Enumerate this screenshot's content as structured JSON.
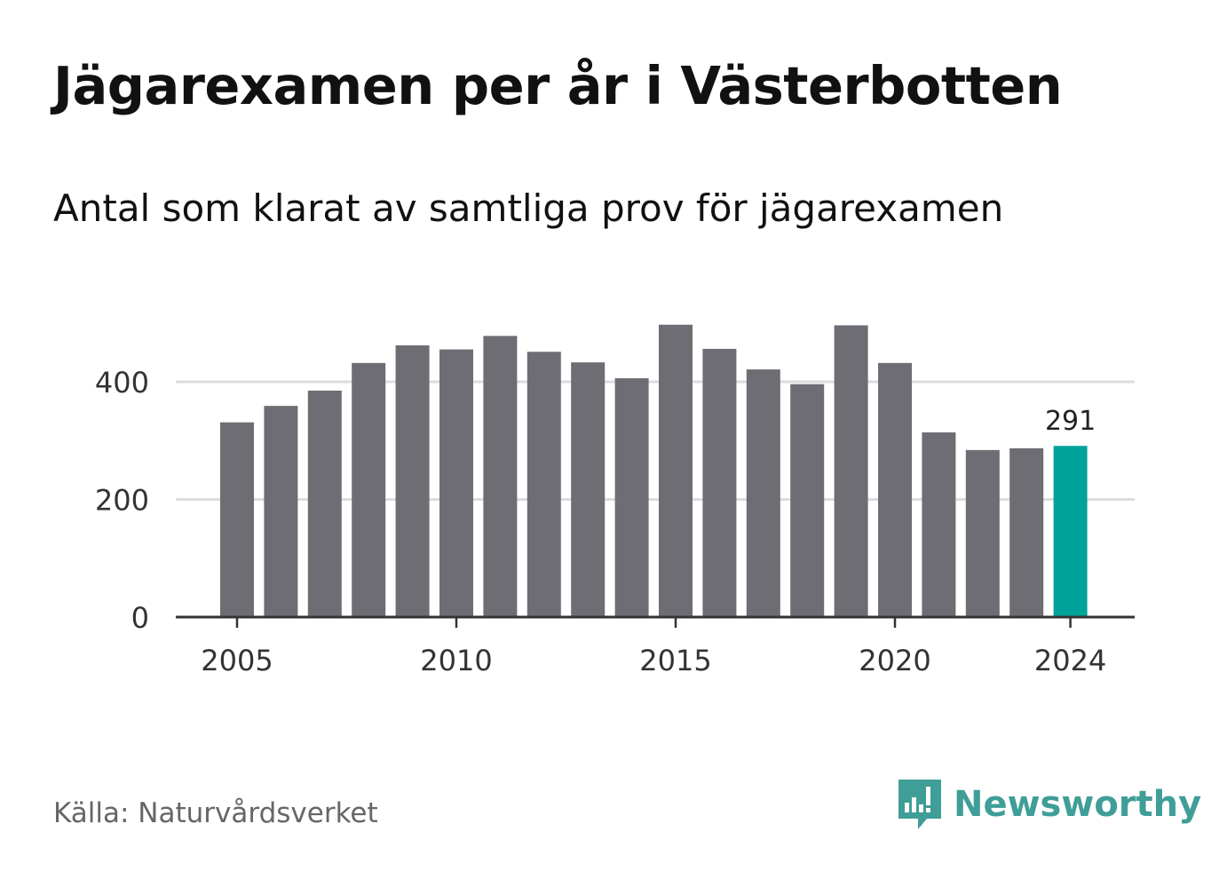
{
  "title": "Jägarexamen per år i Västerbotten",
  "subtitle": "Antal som klarat av samtliga prov för jägarexamen",
  "source": "Källa: Naturvårdsverket",
  "brand": {
    "name": "Newsworthy",
    "icon": "newsworthy-logo-icon",
    "color": "#3f9e97"
  },
  "colors": {
    "bar": "#6e6d73",
    "highlight": "#00a39a",
    "grid": "#dcdcdc",
    "axis": "#333333"
  },
  "chart_data": {
    "type": "bar",
    "x": [
      2005,
      2006,
      2007,
      2008,
      2009,
      2010,
      2011,
      2012,
      2013,
      2014,
      2015,
      2016,
      2017,
      2018,
      2019,
      2020,
      2021,
      2022,
      2023,
      2024
    ],
    "values": [
      331,
      359,
      385,
      432,
      462,
      455,
      478,
      451,
      433,
      406,
      497,
      456,
      421,
      396,
      496,
      432,
      314,
      284,
      287,
      291
    ],
    "highlight_index": 19,
    "data_labels": [
      {
        "index": 19,
        "text": "291"
      }
    ],
    "xticks": [
      2005,
      2010,
      2015,
      2020,
      2024
    ],
    "yticks": [
      0,
      200,
      400
    ],
    "ylim": [
      0,
      520
    ],
    "grid": true,
    "xlabel": "",
    "ylabel": ""
  }
}
